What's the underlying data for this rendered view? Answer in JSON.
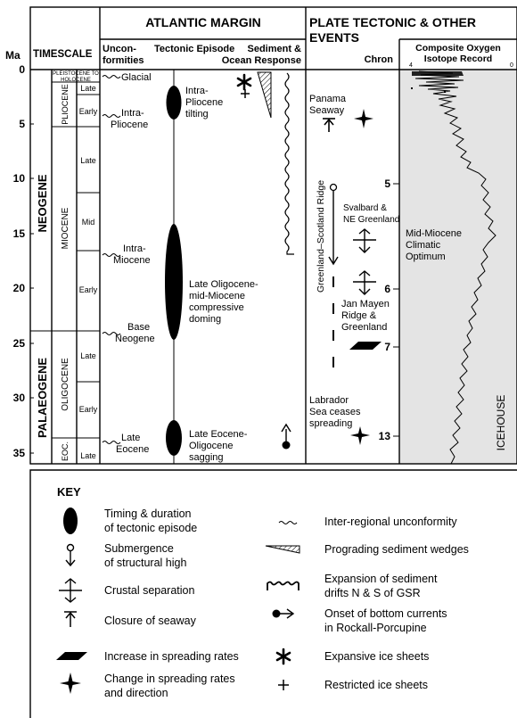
{
  "axis": {
    "unit": "Ma",
    "ticks": [
      "0",
      "5",
      "10",
      "15",
      "20",
      "25",
      "30",
      "35"
    ]
  },
  "headers": {
    "timescale": "TIMESCALE",
    "atlantic": "ATLANTIC MARGIN",
    "unconformities_1": "Uncon-",
    "unconformities_2": "formities",
    "tectonic_episode": "Tectonic Episode",
    "sediment_1": "Sediment &",
    "sediment_2": "Ocean Response",
    "plate_1": "PLATE TECTONIC & OTHER",
    "plate_2": "EVENTS",
    "chron": "Chron",
    "isotope_1": "Composite Oxygen",
    "isotope_2": "Isotope Record",
    "isotope_min": "4",
    "isotope_max": "0"
  },
  "timescale": {
    "periods": [
      "NEOGENE",
      "PALAEOGENE"
    ],
    "epochs": [
      "PLEISTOCENE TO",
      "HOLOCENE",
      "PLIOCENE",
      "MIOCENE",
      "OLIGOCENE",
      "EOC."
    ],
    "stages": [
      "Late",
      "Early",
      "Late",
      "Mid",
      "Early",
      "Late",
      "Early",
      "Late"
    ]
  },
  "unconformities": [
    "Glacial",
    "Intra-",
    "Pliocene",
    "Intra-",
    "Miocene",
    "Base",
    "Neogene",
    "Late",
    "Eocene"
  ],
  "tectonic_episodes": [
    {
      "lines": [
        "Intra-",
        "Pliocene",
        "tilting"
      ]
    },
    {
      "lines": [
        "Late Oligocene-",
        "mid-Miocene",
        "compressive",
        "doming"
      ]
    },
    {
      "lines": [
        "Late Eocene-",
        "Oligocene",
        "sagging"
      ]
    }
  ],
  "plate_events": {
    "panama": [
      "Panama",
      "Seaway"
    ],
    "gsr": "Greenland–Scotland Ridge",
    "svalbard": [
      "Svalbard &",
      "NE Greenland"
    ],
    "jan_mayen": [
      "Jan Mayen",
      "Ridge &",
      "Greenland"
    ],
    "labrador": [
      "Labrador",
      "Sea ceases",
      "spreading"
    ],
    "chrons": [
      "5",
      "6",
      "7",
      "13"
    ]
  },
  "isotope": {
    "mmco": [
      "Mid-Miocene",
      "Climatic",
      "Optimum"
    ],
    "icehouse": "ICEHOUSE"
  },
  "key": {
    "title": "KEY",
    "left": [
      [
        "Timing & duration",
        "of tectonic episode"
      ],
      [
        "Submergence",
        "of structural high"
      ],
      [
        "Crustal separation"
      ],
      [
        "Closure of seaway"
      ],
      [
        "Increase in spreading rates"
      ],
      [
        "Change in spreading rates",
        "and direction"
      ]
    ],
    "right": [
      [
        "Inter-regional unconformity"
      ],
      [
        "Prograding sediment wedges"
      ],
      [
        "Expansion of sediment",
        "drifts N & S of GSR"
      ],
      [
        "Onset of bottom currents",
        "in Rockall-Porcupine"
      ],
      [
        "Expansive ice sheets"
      ],
      [
        "Restricted ice sheets"
      ]
    ]
  },
  "chart_data": {
    "type": "other",
    "y_axis": {
      "label": "Ma",
      "range": [
        0,
        37
      ],
      "ticks": [
        0,
        5,
        10,
        15,
        20,
        25,
        30,
        35
      ]
    },
    "timescale_boundaries_ma": {
      "neogene_palaeogene": 23.8,
      "pliocene_base": 5.3,
      "miocene_late_mid": 11.2,
      "miocene_mid_early": 16.4,
      "oligocene_mid": 28.5,
      "eocene_top": 33.7
    },
    "unconformities_ma": {
      "Glacial": 0.5,
      "Intra-Pliocene": 4.0,
      "Intra-Miocene": 16.7,
      "Base Neogene": 24.0,
      "Late Eocene": 34.0
    },
    "tectonic_episodes_ma": [
      [
        2.0,
        5.0
      ],
      [
        14.7,
        24.3
      ],
      [
        32.0,
        35.6
      ]
    ],
    "chrons_ma": {
      "5": 10.3,
      "6": 19.8,
      "7": 25.0,
      "13": 33.5
    }
  }
}
